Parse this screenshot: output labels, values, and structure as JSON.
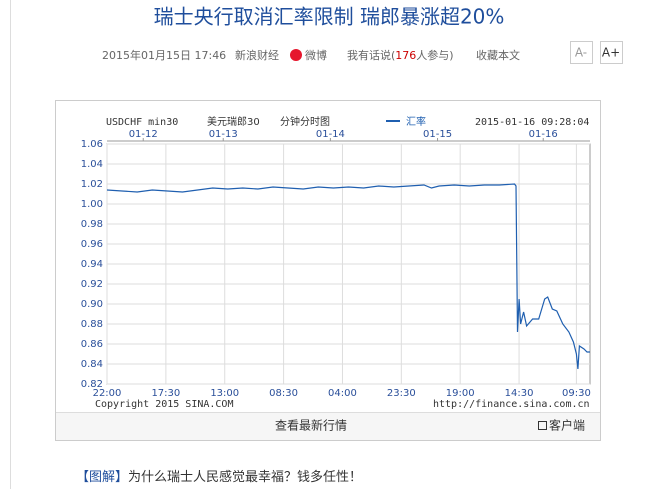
{
  "header": {
    "title": "瑞士央行取消汇率限制 瑞郎暴涨超20%",
    "date": "2015年01月15日  17:46",
    "source": "新浪财经",
    "weibo": "微博",
    "comment_pre": "我有话说(",
    "comment_count": "176",
    "comment_post": "人参与)",
    "favorite": "收藏本文",
    "font_smaller": "A-",
    "font_larger": "A+"
  },
  "chart_data": {
    "type": "line",
    "symbol": "USDCHF min30",
    "title": "美元瑞郎30",
    "subtitle": "分钟分时图",
    "timestamp": "2015-01-16 09:28:04",
    "copyright": "Copyright 2015 SINA.COM",
    "url": "http://finance.sina.com.cn",
    "series": [
      {
        "name": "汇率",
        "color": "#1f5fb0",
        "x": [
          0,
          10,
          20,
          30,
          40,
          50,
          60,
          70,
          80,
          90,
          100,
          110,
          120,
          130,
          140,
          150,
          160,
          170,
          180,
          190,
          200,
          210,
          215,
          220,
          230,
          240,
          250,
          260,
          270,
          271,
          272,
          273,
          274,
          276,
          278,
          282,
          286,
          290,
          292,
          295,
          298,
          302,
          306,
          309,
          311,
          312,
          313,
          316,
          318,
          320
        ],
        "values": [
          1.014,
          1.013,
          1.012,
          1.014,
          1.013,
          1.012,
          1.014,
          1.016,
          1.015,
          1.016,
          1.015,
          1.017,
          1.016,
          1.015,
          1.017,
          1.016,
          1.017,
          1.016,
          1.018,
          1.017,
          1.018,
          1.019,
          1.016,
          1.018,
          1.019,
          1.018,
          1.019,
          1.019,
          1.02,
          1.018,
          0.872,
          0.905,
          0.88,
          0.892,
          0.878,
          0.885,
          0.885,
          0.905,
          0.907,
          0.895,
          0.893,
          0.88,
          0.872,
          0.862,
          0.85,
          0.835,
          0.858,
          0.855,
          0.852,
          0.852
        ]
      }
    ],
    "xlim": [
      0,
      320
    ],
    "xticks": [
      {
        "value": 0,
        "label": "22:00"
      },
      {
        "value": 39,
        "label": "17:30"
      },
      {
        "value": 78,
        "label": "13:00"
      },
      {
        "value": 117,
        "label": "08:30"
      },
      {
        "value": 156,
        "label": "04:00"
      },
      {
        "value": 195,
        "label": "23:30"
      },
      {
        "value": 234,
        "label": "19:00"
      },
      {
        "value": 273,
        "label": "14:30"
      },
      {
        "value": 311,
        "label": "09:30"
      }
    ],
    "date_ticks": [
      {
        "value": 24,
        "label": "01-12"
      },
      {
        "value": 77,
        "label": "01-13"
      },
      {
        "value": 148,
        "label": "01-14"
      },
      {
        "value": 219,
        "label": "01-15"
      },
      {
        "value": 289,
        "label": "01-16"
      }
    ],
    "ylim": [
      0.82,
      1.06
    ],
    "yticks": [
      0.82,
      0.84,
      0.86,
      0.88,
      {
        "value": 0.9,
        "label": "0.90"
      },
      0.92,
      0.94,
      0.96,
      0.98,
      {
        "value": 1,
        "label": "1.00"
      },
      1.02,
      1.04,
      1.06
    ],
    "grid": true
  },
  "chart_footer": {
    "latest": "查看最新行情",
    "client": "客户端"
  },
  "related": {
    "tag": "【图解】",
    "text": "为什么瑞士人民感觉最幸福？钱多任性！"
  }
}
